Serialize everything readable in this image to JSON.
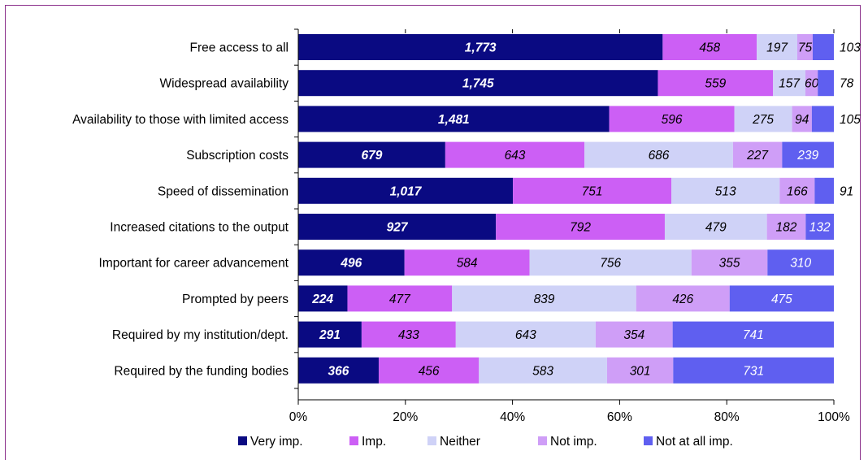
{
  "colors": {
    "border": "#8a2f8a",
    "axis": "#000000"
  },
  "chart_data": {
    "type": "bar",
    "orientation": "horizontal",
    "stacked": "percent",
    "categories": [
      "Free access to all",
      "Widespread availability",
      "Availability to those with limited access",
      "Subscription costs",
      "Speed of dissemination",
      "Increased citations to the output",
      "Important for career advancement",
      "Prompted by peers",
      "Required by my institution/dept.",
      "Required by the funding bodies"
    ],
    "series": [
      {
        "name": "Very imp.",
        "color": "#0a0a82",
        "text_color": "#ffffff",
        "bold": true,
        "values": [
          1773,
          1745,
          1481,
          679,
          1017,
          927,
          496,
          224,
          291,
          366
        ],
        "labels": [
          "1,773",
          "1,745",
          "1,481",
          "679",
          "1,017",
          "927",
          "496",
          "224",
          "291",
          "366"
        ]
      },
      {
        "name": "Imp.",
        "color": "#cc5ff5",
        "text_color": "#000000",
        "bold": false,
        "values": [
          458,
          559,
          596,
          643,
          751,
          792,
          584,
          477,
          433,
          456
        ],
        "labels": [
          "458",
          "559",
          "596",
          "643",
          "751",
          "792",
          "584",
          "477",
          "433",
          "456"
        ]
      },
      {
        "name": "Neither",
        "color": "#cfd2f7",
        "text_color": "#000000",
        "bold": false,
        "values": [
          197,
          157,
          275,
          686,
          513,
          479,
          756,
          839,
          643,
          583
        ],
        "labels": [
          "197",
          "157",
          "275",
          "686",
          "513",
          "479",
          "756",
          "839",
          "643",
          "583"
        ]
      },
      {
        "name": "Not imp.",
        "color": "#cf9ef7",
        "text_color": "#000000",
        "bold": false,
        "values": [
          75,
          60,
          94,
          227,
          166,
          182,
          355,
          426,
          354,
          301
        ],
        "labels": [
          "75",
          "60",
          "94",
          "227",
          "166",
          "182",
          "355",
          "426",
          "354",
          "301"
        ]
      },
      {
        "name": "Not at all imp.",
        "color": "#5f5ff0",
        "text_color": "#ffffff",
        "bold": false,
        "values": [
          103,
          78,
          105,
          239,
          91,
          132,
          310,
          475,
          741,
          731
        ],
        "labels": [
          "103",
          "78",
          "105",
          "239",
          "91",
          "132",
          "310",
          "475",
          "741",
          "731"
        ],
        "label_outside": [
          true,
          true,
          true,
          false,
          true,
          false,
          false,
          false,
          false,
          false
        ]
      }
    ],
    "xticks": [
      "0%",
      "20%",
      "40%",
      "60%",
      "80%",
      "100%"
    ],
    "xlim": [
      0,
      100
    ],
    "legend": "bottom"
  }
}
